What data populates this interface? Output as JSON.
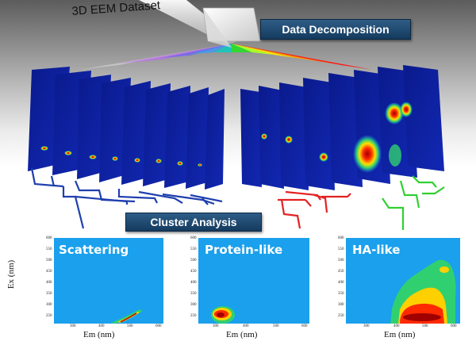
{
  "header": {
    "title_3d": "3D  EEM Dataset",
    "decomposition_label": "Data Decomposition",
    "cluster_label": "Cluster Analysis"
  },
  "panels": [
    {
      "title": "Scattering",
      "xlabel": "Em (nm)",
      "ylabel": "Ex (nm)",
      "xticks": [
        "300",
        "400",
        "500",
        "600"
      ],
      "yticks": [
        "250",
        "300",
        "350",
        "400",
        "450",
        "500",
        "550",
        "600"
      ]
    },
    {
      "title": "Protein-like",
      "xlabel": "Em (nm)",
      "ylabel": "",
      "xticks": [
        "300",
        "400",
        "500",
        "600"
      ],
      "yticks": [
        "250",
        "300",
        "350",
        "400",
        "450",
        "500",
        "550",
        "600"
      ]
    },
    {
      "title": "HA-like",
      "xlabel": "Em (nm)",
      "ylabel": "",
      "xticks": [
        "300",
        "400",
        "500",
        "600"
      ],
      "yticks": [
        "250",
        "300",
        "350",
        "400",
        "450",
        "500",
        "550",
        "600"
      ]
    }
  ],
  "colors": {
    "panel_bg": "#1aa0ec",
    "eem_plane": "#0d1f9c",
    "scatter_cluster": "#1f3fae",
    "protein_cluster": "#e32222",
    "ha_cluster": "#30d030",
    "label_box": "#1e4a72"
  }
}
